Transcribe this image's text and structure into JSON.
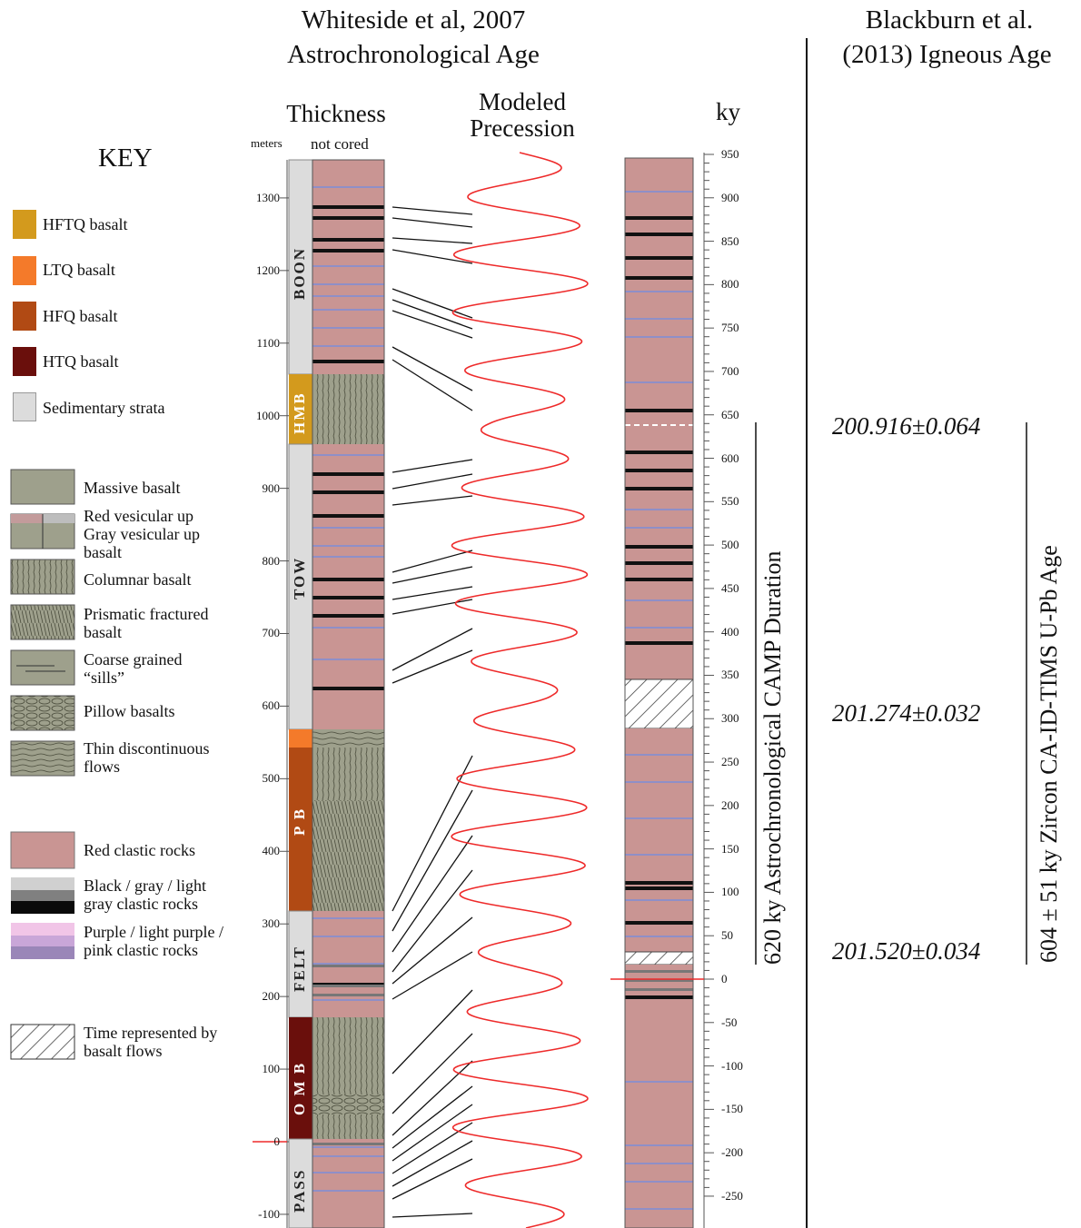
{
  "titles": {
    "left_line1": "Whiteside et al, 2007",
    "left_line2": "Astrochronological Age",
    "right_line1": "Blackburn et al.",
    "right_line2": "(2013) Igneous Age"
  },
  "headers": {
    "thickness": "Thickness",
    "meters": "meters",
    "not_cored": "not cored",
    "modeled": "Modeled",
    "precession": "Precession",
    "ky": "ky"
  },
  "key": {
    "title": "KEY",
    "basalt_types": [
      {
        "label": "HFTQ basalt",
        "color": "#d39a1d"
      },
      {
        "label": "LTQ basalt",
        "color": "#f47a2a"
      },
      {
        "label": "HFQ basalt",
        "color": "#b14a14"
      },
      {
        "label": "HTQ basalt",
        "color": "#6a0f0c"
      },
      {
        "label": "Sedimentary strata",
        "color": "#dcdcdc"
      }
    ],
    "textures": [
      {
        "label": "Massive basalt"
      },
      {
        "label": "Red vesicular up Gray vesicular up basalt"
      },
      {
        "label": "Columnar basalt"
      },
      {
        "label": "Prismatic fractured basalt"
      },
      {
        "label": "Coarse grained “sills”"
      },
      {
        "label": "Pillow basalts"
      },
      {
        "label": "Thin discontinuous flows"
      }
    ],
    "rocks": [
      {
        "label": "Red clastic rocks"
      },
      {
        "label": "Black / gray / light gray clastic rocks"
      },
      {
        "label": "Purple / light purple / pink clastic rocks"
      }
    ],
    "hatch": {
      "label": "Time represented by basalt flows"
    }
  },
  "formations": [
    "BOON",
    "HMB",
    "TOW",
    "P B",
    "FELT",
    "O M B",
    "PASS"
  ],
  "thickness_ticks": [
    "1300",
    "1200",
    "1100",
    "1000",
    "900",
    "800",
    "700",
    "600",
    "500",
    "400",
    "300",
    "200",
    "100",
    "0",
    "-100"
  ],
  "ky_ticks": [
    "950",
    "900",
    "850",
    "800",
    "750",
    "700",
    "650",
    "600",
    "550",
    "500",
    "450",
    "400",
    "350",
    "300",
    "250",
    "200",
    "150",
    "100",
    "50",
    "0",
    "-50",
    "-100",
    "-150",
    "-200",
    "-250"
  ],
  "camp": {
    "label": "620 ky Astrochronological  CAMP Duration"
  },
  "zircon": {
    "label": "604 ± 51 ky Zircon CA-ID-TIMS U-Pb Age"
  },
  "ages": [
    "200.916±0.064",
    "201.274±0.032",
    "201.520±0.034"
  ],
  "colors": {
    "red_clastic": "#c99593",
    "basalt": "#9ea08c",
    "sediment_strip": "#dcdcdc",
    "precession": "#ee2a2a",
    "purple": "#8f8fc7"
  }
}
